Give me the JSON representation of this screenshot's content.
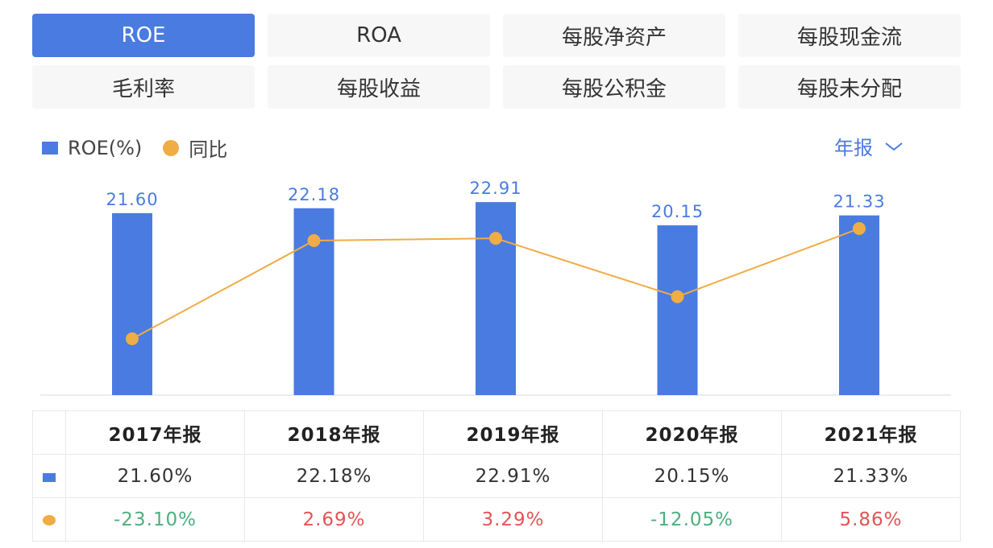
{
  "tabs": [
    "ROE",
    "ROA",
    "每股净资产",
    "每股现金流",
    "毛利率",
    "每股收益",
    "每股公积金",
    "每股未分配"
  ],
  "active_tab": 0,
  "legend": {
    "bar": "ROE(%)",
    "line": "同比"
  },
  "period_select": "年报",
  "colors": {
    "bar": "#4a7be0",
    "line": "#f0ac45",
    "positive": "#e05555",
    "negative": "#4caf7e"
  },
  "chart_data": {
    "type": "bar+line",
    "categories": [
      "2017年报",
      "2018年报",
      "2019年报",
      "2020年报",
      "2021年报"
    ],
    "series": [
      {
        "name": "ROE(%)",
        "type": "bar",
        "values": [
          21.6,
          22.18,
          22.91,
          20.15,
          21.33
        ],
        "labels": [
          "21.60",
          "22.18",
          "22.91",
          "20.15",
          "21.33"
        ]
      },
      {
        "name": "同比",
        "type": "line",
        "values": [
          -23.1,
          2.69,
          3.29,
          -12.05,
          5.86
        ]
      }
    ],
    "grid": false,
    "legend": "top-left"
  },
  "table": {
    "headers": [
      "2017年报",
      "2018年报",
      "2019年报",
      "2020年报",
      "2021年报"
    ],
    "roe": [
      "21.60%",
      "22.18%",
      "22.91%",
      "20.15%",
      "21.33%"
    ],
    "yoy": [
      "-23.10%",
      "2.69%",
      "3.29%",
      "-12.05%",
      "5.86%"
    ]
  }
}
